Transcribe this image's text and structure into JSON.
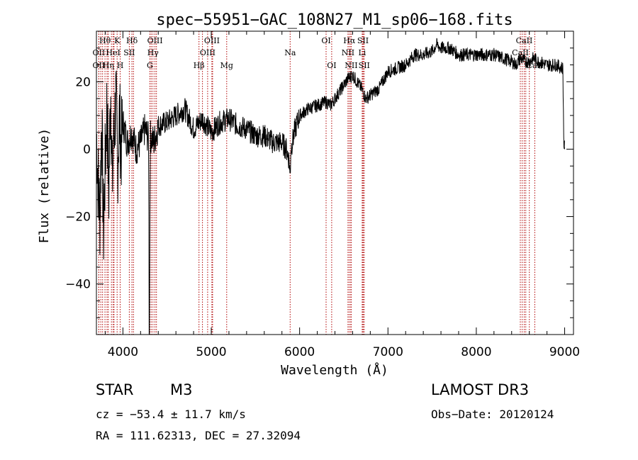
{
  "chart_data": {
    "type": "line",
    "title": "spec−55951−GAC_108N27_M1_sp06−168.fits",
    "xlabel": "Wavelength (Å)",
    "ylabel": "Flux (relative)",
    "xlim": [
      3700,
      9100
    ],
    "ylim": [
      -55,
      35
    ],
    "x_ticks": [
      4000,
      5000,
      6000,
      7000,
      8000,
      9000
    ],
    "y_ticks": [
      -40,
      -20,
      0,
      20
    ],
    "series": [
      {
        "name": "flux",
        "x": [
          3700,
          3720,
          3740,
          3760,
          3780,
          3800,
          3820,
          3840,
          3860,
          3880,
          3900,
          3920,
          3940,
          3960,
          3980,
          4000,
          4050,
          4100,
          4150,
          4200,
          4250,
          4290,
          4300,
          4310,
          4350,
          4400,
          4500,
          4600,
          4700,
          4800,
          4900,
          5000,
          5100,
          5200,
          5300,
          5400,
          5500,
          5600,
          5700,
          5800,
          5850,
          5880,
          5893,
          5900,
          5950,
          6000,
          6100,
          6200,
          6300,
          6350,
          6400,
          6450,
          6500,
          6550,
          6600,
          6650,
          6700,
          6750,
          6800,
          6900,
          7000,
          7100,
          7200,
          7300,
          7400,
          7500,
          7550,
          7600,
          7700,
          7800,
          7900,
          8000,
          8100,
          8200,
          8300,
          8400,
          8450,
          8500,
          8550,
          8600,
          8650,
          8700,
          8800,
          8900,
          8980,
          8990,
          9000
        ],
        "values": [
          5,
          -10,
          -20,
          10,
          -25,
          -5,
          15,
          -15,
          20,
          -10,
          5,
          15,
          -5,
          10,
          0,
          8,
          2,
          5,
          0,
          2,
          6,
          3,
          -55,
          4,
          2,
          7,
          8,
          10,
          12,
          6,
          9,
          5,
          8,
          9,
          7,
          6,
          4,
          4,
          2,
          2,
          0,
          -3,
          -7,
          0,
          6,
          10,
          12,
          13,
          14,
          13,
          15,
          17,
          19,
          21,
          22,
          20,
          18,
          15,
          16,
          18,
          23,
          24,
          25,
          28,
          28,
          29,
          31,
          30,
          30,
          28,
          28,
          28,
          28,
          28,
          27,
          26,
          25,
          27,
          26,
          26,
          27,
          26,
          25,
          25,
          24,
          2,
          0
        ]
      }
    ],
    "spectral_lines": [
      {
        "label": "Hθ",
        "x": 3797,
        "row": 1
      },
      {
        "label": "K",
        "x": 3934,
        "row": 1
      },
      {
        "label": "Hδ",
        "x": 4102,
        "row": 1
      },
      {
        "label": "OIII",
        "x": 4363,
        "row": 1
      },
      {
        "label": "OIII",
        "x": 5007,
        "row": 1
      },
      {
        "label": "OI",
        "x": 6300,
        "row": 1
      },
      {
        "label": "Hα",
        "x": 6563,
        "row": 1
      },
      {
        "label": "SII",
        "x": 6717,
        "row": 1
      },
      {
        "label": "CaII",
        "x": 8542,
        "row": 1
      },
      {
        "label": "OII",
        "x": 3727,
        "row": 2
      },
      {
        "label": "HeI",
        "x": 3889,
        "row": 2
      },
      {
        "label": "SII",
        "x": 4072,
        "row": 2
      },
      {
        "label": "Hγ",
        "x": 4340,
        "row": 2
      },
      {
        "label": "OIII",
        "x": 4959,
        "row": 2
      },
      {
        "label": "Na",
        "x": 5893,
        "row": 2
      },
      {
        "label": "NII",
        "x": 6548,
        "row": 2
      },
      {
        "label": "Li",
        "x": 6708,
        "row": 2
      },
      {
        "label": "CaII",
        "x": 8498,
        "row": 2
      },
      {
        "label": "OII",
        "x": 3727,
        "row": 3
      },
      {
        "label": "Hη",
        "x": 3835,
        "row": 3
      },
      {
        "label": "H",
        "x": 3969,
        "row": 3
      },
      {
        "label": "G",
        "x": 4305,
        "row": 3
      },
      {
        "label": "Hβ",
        "x": 4861,
        "row": 3
      },
      {
        "label": "Mg",
        "x": 5175,
        "row": 3
      },
      {
        "label": "OI",
        "x": 6363,
        "row": 3
      },
      {
        "label": "NII",
        "x": 6584,
        "row": 3
      },
      {
        "label": "SII",
        "x": 6731,
        "row": 3
      },
      {
        "label": "CaII",
        "x": 8662,
        "row": 3
      }
    ],
    "extra_line_marks": [
      3750,
      3770,
      3820,
      3870,
      3900,
      4120,
      4320,
      4380,
      4900,
      5015,
      6580,
      6720,
      8520,
      8560,
      8600
    ]
  },
  "info": {
    "object_class": "STAR",
    "subclass": "M3",
    "survey": "LAMOST DR3",
    "redshift": "cz = −53.4 ± 11.7 km/s",
    "obs_date": "Obs−Date: 20120124",
    "coords": "RA = 111.62313, DEC =  27.32094"
  },
  "colors": {
    "line": "#000000",
    "marker": "#b00000",
    "axes": "#000000"
  }
}
